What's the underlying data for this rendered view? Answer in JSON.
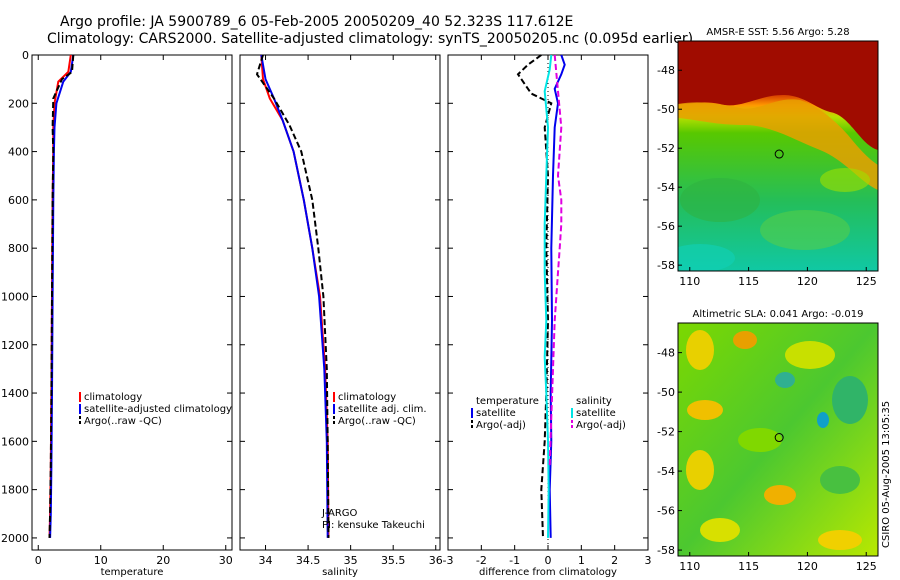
{
  "title_line1": "Argo profile: JA 5900789_6 05-Feb-2005 20050209_40 52.323S 117.612E",
  "title_line2": "Climatology: CARS2000. Satellite-adjusted climatology: synTS_20050205.nc (0.095d earlier)",
  "colors": {
    "climatology": "#ff0000",
    "satellite": "#0000ee",
    "argo": "#000000",
    "sal_satellite": "#00e5e5",
    "sal_argo": "#e000e0"
  },
  "chart_data": [
    {
      "id": "temperature",
      "type": "line",
      "xlabel": "temperature",
      "ylabel": "",
      "xlim": [
        -1,
        31
      ],
      "ylim": [
        2050,
        0
      ],
      "xticks": [
        0,
        10,
        20,
        30
      ],
      "yticks": [
        0,
        200,
        400,
        600,
        800,
        1000,
        1200,
        1400,
        1600,
        1800,
        2000
      ],
      "legend": [
        "climatology",
        "satellite-adjusted climatology",
        "Argo(..raw -QC)"
      ],
      "series": [
        {
          "name": "climatology",
          "style": "solid",
          "color_key": "climatology",
          "x": [
            5.2,
            4.8,
            3.2,
            2.6,
            2.4,
            2.4,
            2.3,
            2.2,
            2.1,
            2.0,
            1.9,
            1.8
          ],
          "y": [
            0,
            70,
            110,
            200,
            300,
            400,
            600,
            1000,
            1400,
            1700,
            1900,
            2000
          ]
        },
        {
          "name": "satellite-adjusted climatology",
          "style": "solid",
          "color_key": "satellite",
          "x": [
            5.6,
            5.2,
            4.0,
            2.9,
            2.6,
            2.5,
            2.4,
            2.3,
            2.2,
            2.1,
            2.0,
            1.9
          ],
          "y": [
            0,
            70,
            110,
            200,
            300,
            400,
            600,
            1000,
            1400,
            1700,
            1900,
            2000
          ]
        },
        {
          "name": "Argo(..raw -QC)",
          "style": "dashed",
          "color_key": "argo",
          "x": [
            5.6,
            5.4,
            3.8,
            2.4,
            2.3,
            2.4,
            2.3,
            2.2,
            2.1,
            2.0,
            1.9,
            1.8
          ],
          "y": [
            0,
            70,
            100,
            180,
            300,
            400,
            600,
            1000,
            1400,
            1700,
            1900,
            2000
          ]
        }
      ]
    },
    {
      "id": "salinity",
      "type": "line",
      "xlabel": "salinity",
      "ylabel": "",
      "xlim": [
        33.7,
        36.05
      ],
      "ylim": [
        2050,
        0
      ],
      "xticks": [
        34,
        34.5,
        35,
        35.5,
        36
      ],
      "xticklabels": [
        "34",
        "34.5",
        "35",
        "35.5",
        "36"
      ],
      "legend": [
        "climatology",
        "satellite adj. clim.",
        "Argo(..raw -QC)"
      ],
      "annotation": [
        "J-ARGO",
        "PI: kensuke Takeuchi"
      ],
      "series": [
        {
          "name": "climatology",
          "style": "solid",
          "color_key": "climatology",
          "x": [
            33.95,
            33.97,
            34.05,
            34.2,
            34.33,
            34.45,
            34.55,
            34.64,
            34.7,
            34.73,
            34.74
          ],
          "y": [
            0,
            100,
            180,
            270,
            400,
            600,
            800,
            1000,
            1300,
            1600,
            2000
          ]
        },
        {
          "name": "satellite adj. clim.",
          "style": "solid",
          "color_key": "satellite",
          "x": [
            33.95,
            34.0,
            34.1,
            34.2,
            34.33,
            34.45,
            34.55,
            34.63,
            34.69,
            34.72,
            34.73
          ],
          "y": [
            0,
            100,
            180,
            270,
            400,
            600,
            800,
            1000,
            1300,
            1600,
            2000
          ]
        },
        {
          "name": "Argo(..raw -QC)",
          "style": "dashed",
          "color_key": "argo",
          "x": [
            33.97,
            33.9,
            34.1,
            34.28,
            34.42,
            34.55,
            34.62,
            34.68,
            34.72,
            34.73,
            34.74
          ],
          "y": [
            0,
            80,
            180,
            290,
            400,
            600,
            800,
            1000,
            1300,
            1600,
            2000
          ]
        }
      ]
    },
    {
      "id": "difference",
      "type": "line",
      "xlabel": "difference from climatology",
      "ylabel": "",
      "xlim": [
        -3,
        3
      ],
      "ylim": [
        2050,
        0
      ],
      "xticks": [
        -3,
        -2,
        -1,
        0,
        1,
        2,
        3
      ],
      "legend_temperature": [
        "temperature",
        "satellite",
        "Argo(-adj)"
      ],
      "legend_salinity": [
        "salinity",
        "satellite",
        "Argo(-adj)"
      ],
      "series": [
        {
          "name": "temperature satellite",
          "style": "solid",
          "color_key": "satellite",
          "x": [
            0.4,
            0.5,
            0.4,
            0.2,
            0.3,
            0.2,
            0.15,
            0.1,
            0.12,
            0.08,
            0.1,
            0.05,
            0.08
          ],
          "y": [
            0,
            40,
            80,
            140,
            200,
            300,
            500,
            800,
            1100,
            1400,
            1600,
            1800,
            2000
          ]
        },
        {
          "name": "temperature Argo(-adj)",
          "style": "dashed",
          "color_key": "argo",
          "x": [
            -0.2,
            -0.6,
            -0.9,
            -0.5,
            0.1,
            -0.1,
            0.0,
            -0.05,
            0.0,
            -0.05,
            -0.1,
            -0.2,
            -0.15
          ],
          "y": [
            0,
            40,
            80,
            160,
            200,
            300,
            500,
            800,
            1100,
            1400,
            1600,
            1800,
            2000
          ]
        },
        {
          "name": "salinity satellite",
          "style": "solid",
          "color_key": "sal_satellite",
          "x": [
            0.1,
            0.05,
            -0.1,
            0.0,
            -0.05,
            -0.1,
            -0.1,
            -0.05,
            -0.1,
            -0.05,
            0.0,
            0.02,
            0.0
          ],
          "y": [
            0,
            60,
            150,
            300,
            500,
            700,
            900,
            1100,
            1250,
            1400,
            1600,
            1800,
            2000
          ]
        },
        {
          "name": "salinity Argo(-adj)",
          "style": "dashed",
          "color_key": "sal_argo",
          "x": [
            0.2,
            0.4,
            0.3,
            0.4,
            0.4,
            0.35,
            0.3,
            0.2,
            0.15,
            0.1,
            0.05
          ],
          "y": [
            0,
            300,
            500,
            600,
            700,
            800,
            900,
            1100,
            1300,
            1500,
            1700
          ]
        }
      ]
    },
    {
      "id": "sst_map",
      "type": "heatmap",
      "title": "AMSR-E SST: 5.56 Argo: 5.28",
      "xlim": [
        109,
        126
      ],
      "ylim": [
        -58.3,
        -46.5
      ],
      "xticks": [
        110,
        115,
        120,
        125
      ],
      "yticks": [
        -48,
        -50,
        -52,
        -54,
        -56,
        -58
      ],
      "marker": {
        "lon": 117.6,
        "lat": -52.3
      }
    },
    {
      "id": "sla_map",
      "type": "heatmap",
      "title": "Altimetric SLA: 0.041 Argo: -0.019",
      "xlim": [
        109,
        126
      ],
      "ylim": [
        -58.3,
        -46.5
      ],
      "xticks": [
        110,
        115,
        120,
        125
      ],
      "yticks": [
        -48,
        -50,
        -52,
        -54,
        -56,
        -58
      ],
      "marker": {
        "lon": 117.6,
        "lat": -52.3
      }
    }
  ],
  "side_label": "CSIRO 05-Aug-2005 13:05:35"
}
